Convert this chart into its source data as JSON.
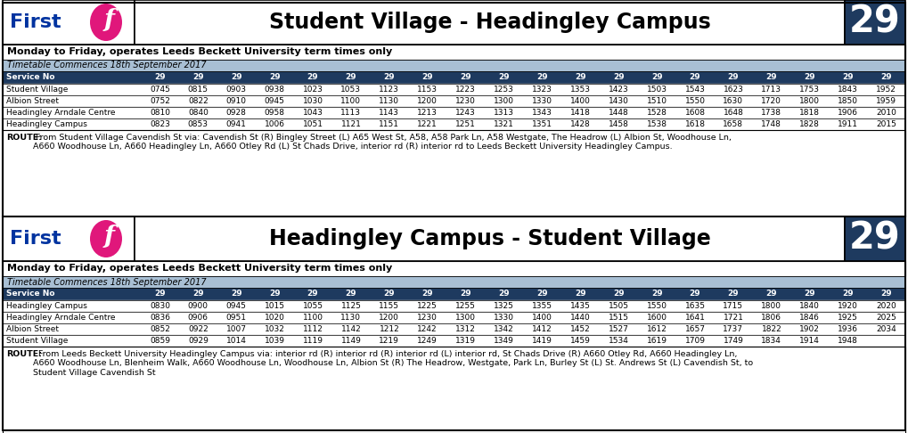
{
  "section1": {
    "title": "Student Village - Headingley Campus",
    "route_number": "29",
    "monday_friday": "Monday to Friday, operates Leeds Beckett University term times only",
    "timetable_commences": "Timetable Commences 18th September 2017",
    "service_no_label": "Service No",
    "service_numbers": [
      "29",
      "29",
      "29",
      "29",
      "29",
      "29",
      "29",
      "29",
      "29",
      "29",
      "29",
      "29",
      "29",
      "29",
      "29",
      "29",
      "29",
      "29",
      "29",
      "29"
    ],
    "stops": [
      "Student Village",
      "Albion Street",
      "Headingley Arndale Centre",
      "Headingley Campus"
    ],
    "times": [
      [
        "0745",
        "0815",
        "0903",
        "0938",
        "1023",
        "1053",
        "1123",
        "1153",
        "1223",
        "1253",
        "1323",
        "1353",
        "1423",
        "1503",
        "1543",
        "1623",
        "1713",
        "1753",
        "1843",
        "1952"
      ],
      [
        "0752",
        "0822",
        "0910",
        "0945",
        "1030",
        "1100",
        "1130",
        "1200",
        "1230",
        "1300",
        "1330",
        "1400",
        "1430",
        "1510",
        "1550",
        "1630",
        "1720",
        "1800",
        "1850",
        "1959"
      ],
      [
        "0810",
        "0840",
        "0928",
        "0958",
        "1043",
        "1113",
        "1143",
        "1213",
        "1243",
        "1313",
        "1343",
        "1418",
        "1448",
        "1528",
        "1608",
        "1648",
        "1738",
        "1818",
        "1906",
        "2010"
      ],
      [
        "0823",
        "0853",
        "0941",
        "1006",
        "1051",
        "1121",
        "1151",
        "1221",
        "1251",
        "1321",
        "1351",
        "1428",
        "1458",
        "1538",
        "1618",
        "1658",
        "1748",
        "1828",
        "1911",
        "2015"
      ]
    ],
    "route_text_bold": "ROUTE:",
    "route_text_normal": " From Student Village Cavendish St via: Cavendish St (R) Bingley Street (L) A65 West St, A58, A58 Park Ln, A58 Westgate, The Headrow (L) Albion St, Woodhouse Ln,\nA660 Woodhouse Ln, A660 Headingley Ln, A660 Otley Rd (L) St Chads Drive, interior rd (R) interior rd to Leeds Beckett University Headingley Campus."
  },
  "section2": {
    "title": "Headingley Campus - Student Village",
    "route_number": "29",
    "monday_friday": "Monday to Friday, operates Leeds Beckett University term times only",
    "timetable_commences": "Timetable Commences 18th September 2017",
    "service_no_label": "Service No",
    "service_numbers": [
      "29",
      "29",
      "29",
      "29",
      "29",
      "29",
      "29",
      "29",
      "29",
      "29",
      "29",
      "29",
      "29",
      "29",
      "29",
      "29",
      "29",
      "29",
      "29",
      "29"
    ],
    "stops": [
      "Headingley Campus",
      "Headingley Arndale Centre",
      "Albion Street",
      "Student Village"
    ],
    "times": [
      [
        "0830",
        "0900",
        "0945",
        "1015",
        "1055",
        "1125",
        "1155",
        "1225",
        "1255",
        "1325",
        "1355",
        "1435",
        "1505",
        "1550",
        "1635",
        "1715",
        "1800",
        "1840",
        "1920",
        "2020"
      ],
      [
        "0836",
        "0906",
        "0951",
        "1020",
        "1100",
        "1130",
        "1200",
        "1230",
        "1300",
        "1330",
        "1400",
        "1440",
        "1515",
        "1600",
        "1641",
        "1721",
        "1806",
        "1846",
        "1925",
        "2025"
      ],
      [
        "0852",
        "0922",
        "1007",
        "1032",
        "1112",
        "1142",
        "1212",
        "1242",
        "1312",
        "1342",
        "1412",
        "1452",
        "1527",
        "1612",
        "1657",
        "1737",
        "1822",
        "1902",
        "1936",
        "2034"
      ],
      [
        "0859",
        "0929",
        "1014",
        "1039",
        "1119",
        "1149",
        "1219",
        "1249",
        "1319",
        "1349",
        "1419",
        "1459",
        "1534",
        "1619",
        "1709",
        "1749",
        "1834",
        "1914",
        "1948",
        ""
      ]
    ],
    "route_text_bold": "ROUTE:",
    "route_text_normal": "  From Leeds Beckett University Headingley Campus via: interior rd (R) interior rd (R) interior rd (L) interior rd, St Chads Drive (R) A660 Otley Rd, A660 Headingley Ln,\nA660 Woodhouse Ln, Blenheim Walk, A660 Woodhouse Ln, Woodhouse Ln, Albion St (R) The Headrow, Westgate, Park Ln, Burley St (L) St. Andrews St (L) Cavendish St, to\nStudent Village Cavendish St"
  },
  "colors": {
    "navy": "#1e3a5f",
    "light_blue_bar": "#a8bfd4",
    "white": "#ffffff",
    "black": "#000000",
    "pink": "#e0177b",
    "blue_logo": "#0033a0",
    "border": "#000000",
    "row_line": "#cccccc"
  }
}
